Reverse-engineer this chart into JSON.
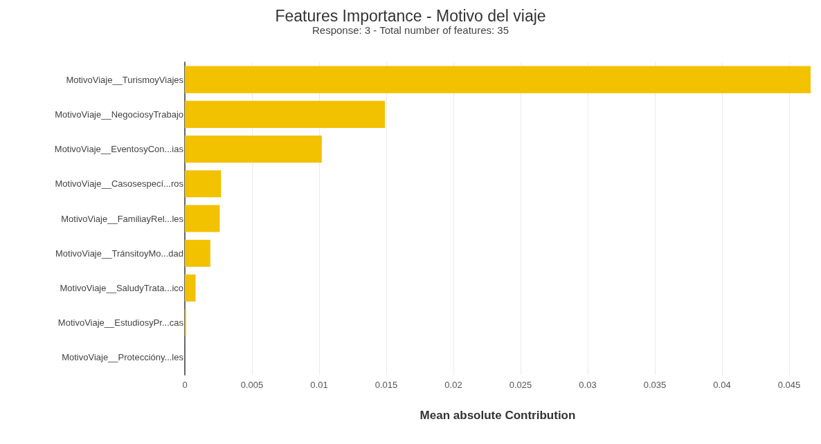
{
  "chart_data": {
    "type": "bar",
    "orientation": "horizontal",
    "title": "Features Importance - Motivo del viaje",
    "subtitle": "Response: 3 - Total number of features: 35",
    "xlabel": "Mean absolute Contribution",
    "categories": [
      "MotivoViaje__TurismoyViajes",
      "MotivoViaje__NegociosyTrabajo",
      "MotivoViaje__EventosyCon...ias",
      "MotivoViaje__Casosespecí...ros",
      "MotivoViaje__FamiliayRel...les",
      "MotivoViaje__TránsitoyMo...dad",
      "MotivoViaje__SaludyTrata...ico",
      "MotivoViaje__EstudiosyPr...cas",
      "MotivoViaje__Proteccióny...les"
    ],
    "values": [
      0.0466,
      0.0149,
      0.0102,
      0.0027,
      0.0026,
      0.0019,
      0.0008,
      0.0001,
      0
    ],
    "color": "#f2c100",
    "xlim": [
      0,
      0.0466
    ],
    "xticks": [
      0,
      0.005,
      0.01,
      0.015,
      0.02,
      0.025,
      0.03,
      0.035,
      0.04,
      0.045
    ],
    "grid": "x"
  }
}
